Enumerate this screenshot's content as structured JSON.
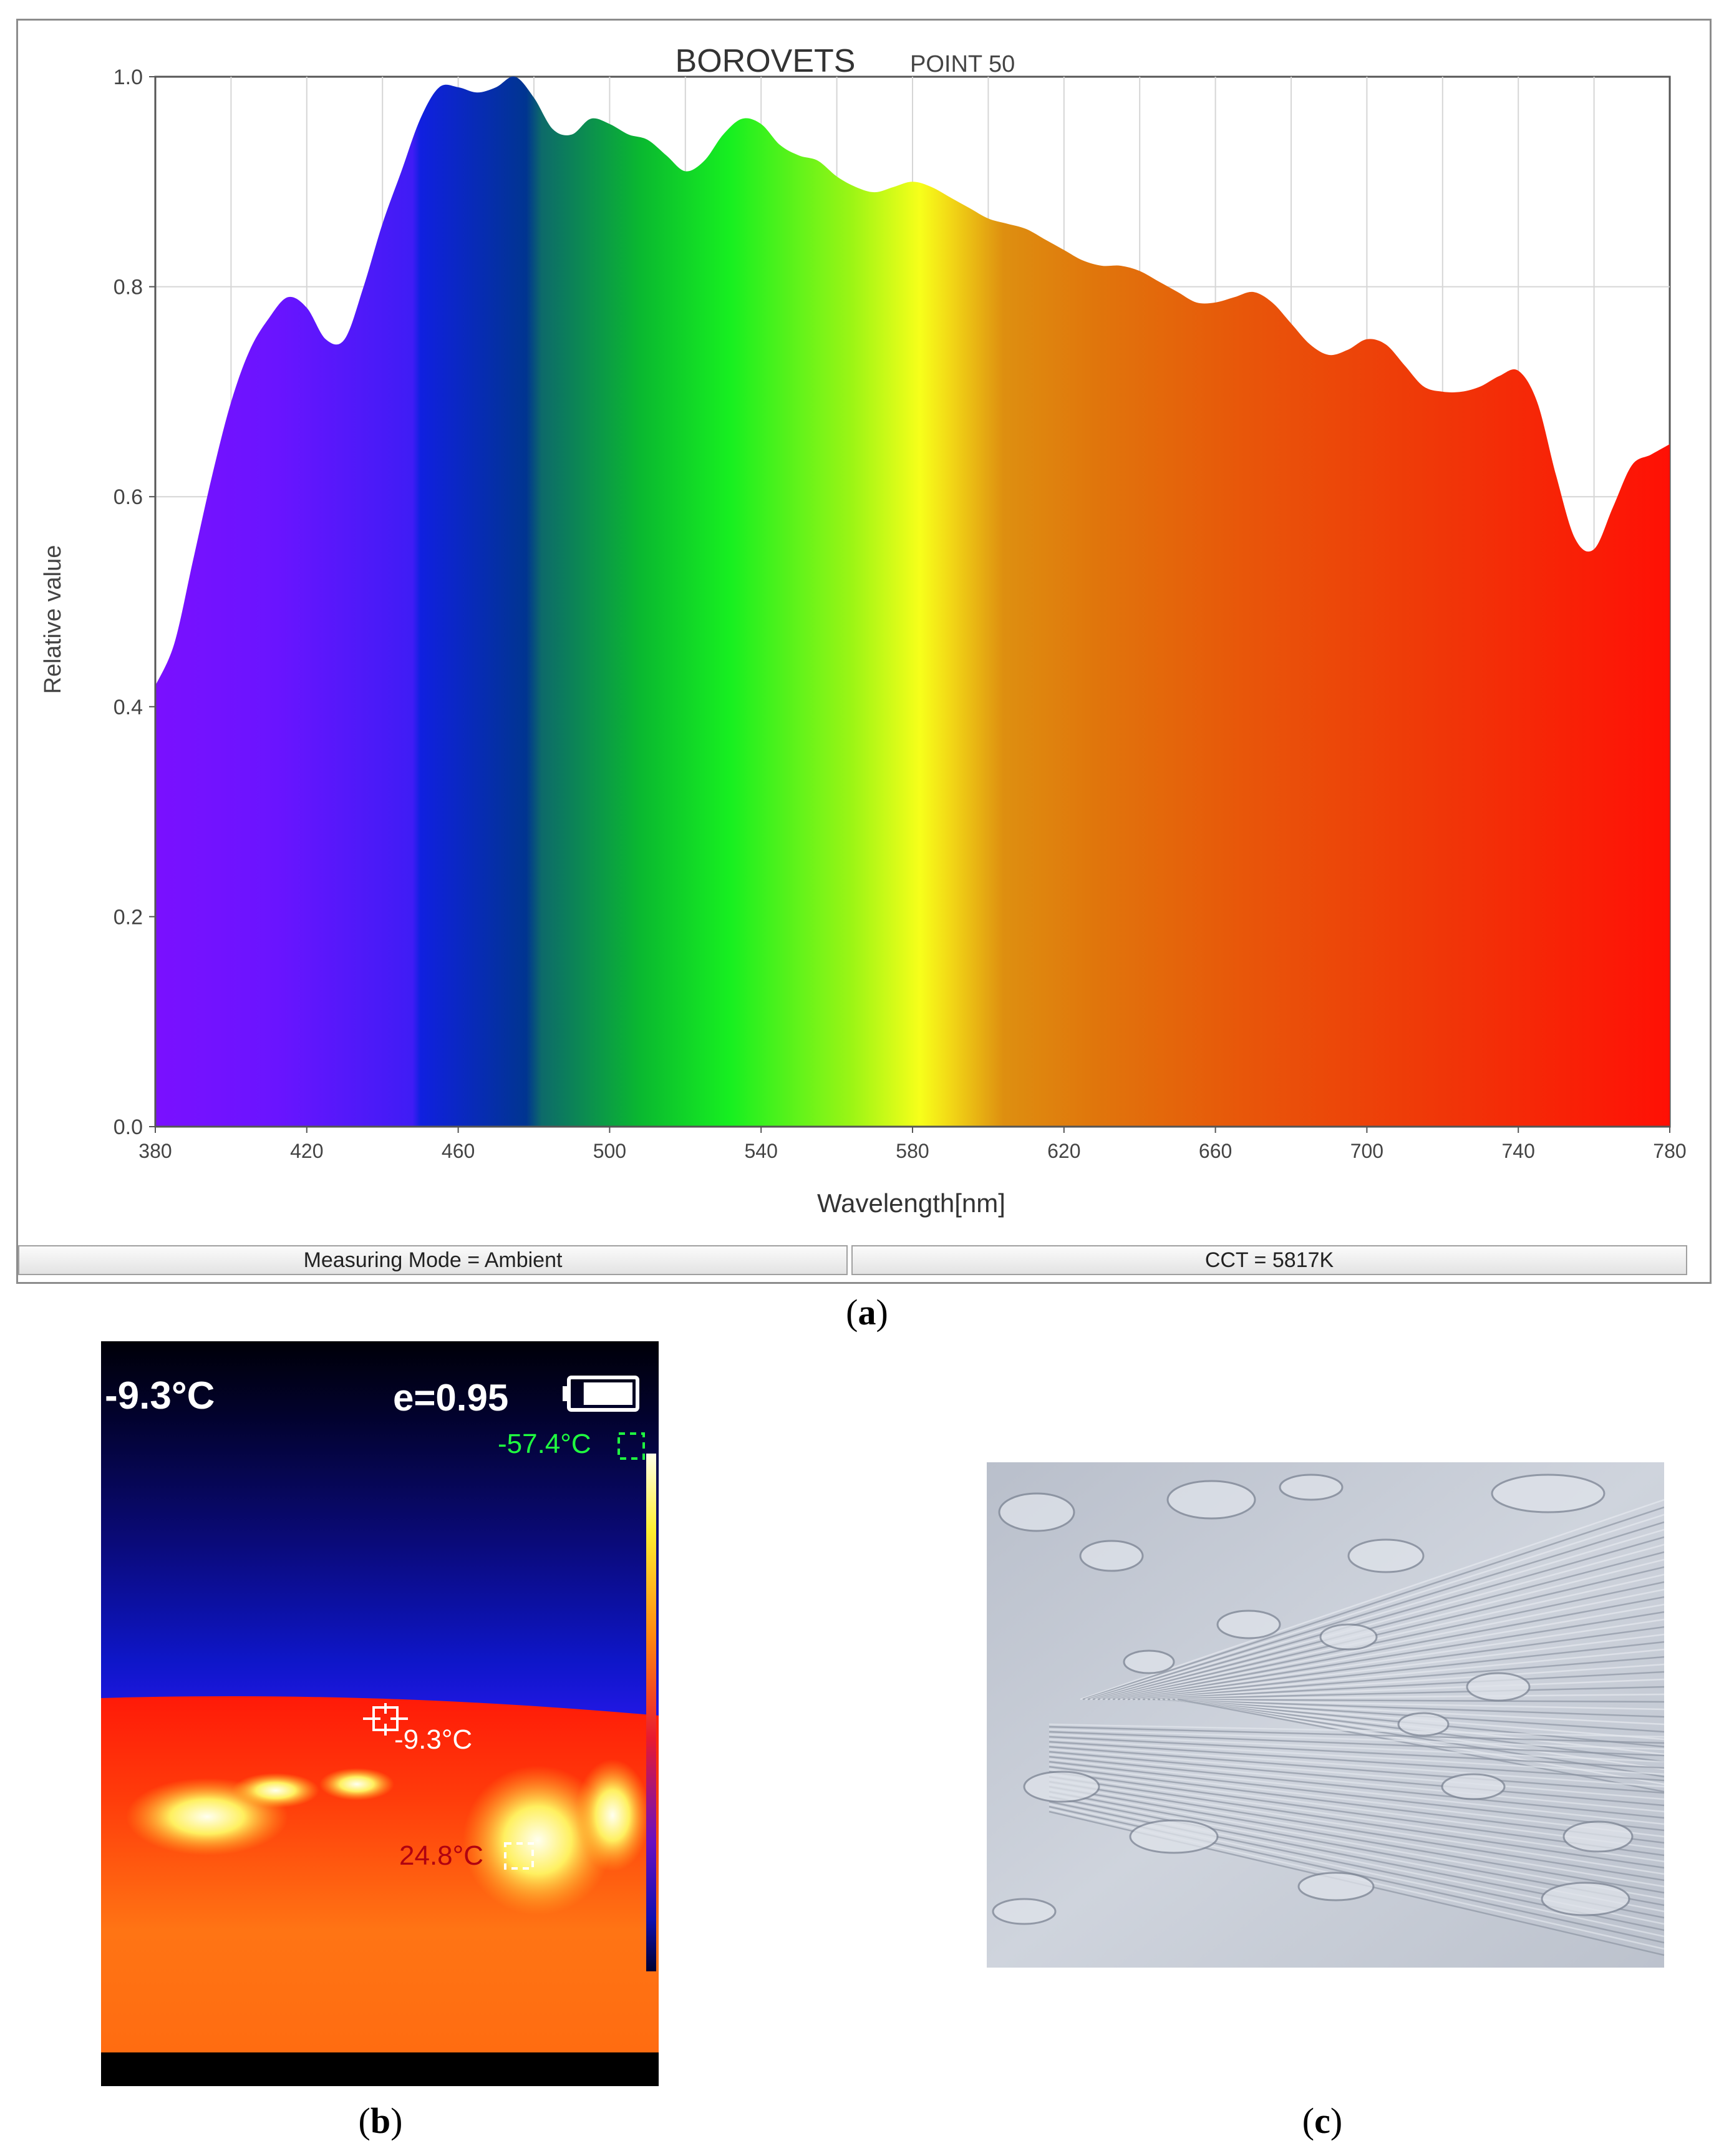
{
  "panel_a": {
    "caption_letter": "a",
    "status_left": "Measuring Mode = Ambient",
    "status_right": "CCT = 5817K"
  },
  "panel_b": {
    "caption_letter": "b",
    "ambient_temp": "-9.3°C",
    "emissivity": "e=0.95",
    "min_temp": "-57.4°C",
    "center_temp": "-9.3°C",
    "max_temp": "24.8°C",
    "battery_level": 0.85
  },
  "panel_c": {
    "caption_letter": "c"
  },
  "chart_data": {
    "type": "area",
    "title": "BOROVETS",
    "subtitle": "POINT 50",
    "xlabel": "Wavelength[nm]",
    "ylabel": "Relative value",
    "xlim": [
      380,
      780
    ],
    "ylim": [
      0,
      1.0
    ],
    "x_ticks": [
      380,
      420,
      460,
      500,
      540,
      580,
      620,
      660,
      700,
      740,
      780
    ],
    "y_ticks": [
      "0.0",
      "0.2",
      "0.4",
      "0.6",
      "0.8",
      "1.0"
    ],
    "grid": true,
    "fill": "visible-spectrum gradient",
    "x": [
      380,
      385,
      390,
      395,
      400,
      405,
      410,
      415,
      420,
      425,
      430,
      435,
      440,
      445,
      450,
      455,
      460,
      465,
      470,
      475,
      480,
      485,
      490,
      495,
      500,
      505,
      510,
      515,
      520,
      525,
      530,
      535,
      540,
      545,
      550,
      555,
      560,
      565,
      570,
      575,
      580,
      585,
      590,
      595,
      600,
      605,
      610,
      615,
      620,
      625,
      630,
      635,
      640,
      645,
      650,
      655,
      660,
      665,
      670,
      675,
      680,
      685,
      690,
      695,
      700,
      705,
      710,
      715,
      720,
      725,
      730,
      735,
      740,
      745,
      750,
      755,
      760,
      765,
      770,
      775,
      780
    ],
    "values": [
      0.42,
      0.46,
      0.54,
      0.62,
      0.69,
      0.74,
      0.77,
      0.79,
      0.78,
      0.75,
      0.75,
      0.8,
      0.86,
      0.91,
      0.96,
      0.99,
      0.99,
      0.985,
      0.99,
      1.0,
      0.98,
      0.95,
      0.945,
      0.96,
      0.955,
      0.945,
      0.94,
      0.925,
      0.91,
      0.92,
      0.945,
      0.96,
      0.955,
      0.935,
      0.925,
      0.92,
      0.905,
      0.895,
      0.89,
      0.895,
      0.9,
      0.895,
      0.885,
      0.875,
      0.865,
      0.86,
      0.855,
      0.845,
      0.835,
      0.825,
      0.82,
      0.82,
      0.815,
      0.805,
      0.795,
      0.785,
      0.785,
      0.79,
      0.795,
      0.785,
      0.765,
      0.745,
      0.735,
      0.74,
      0.75,
      0.745,
      0.725,
      0.705,
      0.7,
      0.7,
      0.705,
      0.715,
      0.72,
      0.69,
      0.62,
      0.56,
      0.55,
      0.59,
      0.63,
      0.64,
      0.65
    ]
  }
}
